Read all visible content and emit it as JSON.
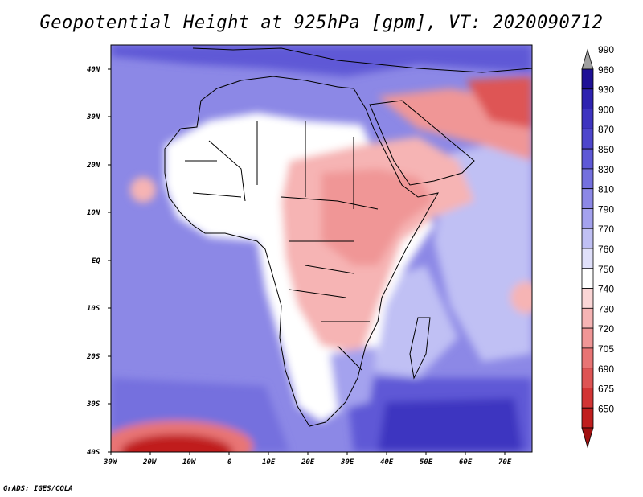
{
  "title": "Geopotential Height at 925hPa [gpm], VT: 2020090712",
  "credit": "GrADS: IGES/COLA",
  "map": {
    "lon_range": [
      -30,
      77
    ],
    "lat_range": [
      -40,
      45
    ],
    "lon_ticks": [
      "30W",
      "20W",
      "10W",
      "0",
      "10E",
      "20E",
      "30E",
      "40E",
      "50E",
      "60E",
      "70E"
    ],
    "lat_ticks": [
      "40N",
      "30N",
      "20N",
      "10N",
      "EQ",
      "10S",
      "20S",
      "30S",
      "40S"
    ]
  },
  "colorbar": {
    "labels": [
      "990",
      "960",
      "930",
      "900",
      "870",
      "850",
      "830",
      "810",
      "790",
      "770",
      "760",
      "750",
      "740",
      "730",
      "720",
      "705",
      "690",
      "675",
      "650"
    ],
    "colors": [
      "#a0a0a0",
      "#1e1096",
      "#2e22b0",
      "#3e34c0",
      "#4e46cc",
      "#5e58d6",
      "#7470de",
      "#8c88e6",
      "#a4a2ee",
      "#c0c0f4",
      "#e0e0fa",
      "#ffffff",
      "#fbd6d6",
      "#f6b4b4",
      "#f09696",
      "#e87474",
      "#de5454",
      "#d23434",
      "#c01e1e",
      "#a01010"
    ]
  },
  "chart_data": {
    "type": "heatmap",
    "title": "Geopotential Height at 925hPa [gpm], VT: 2020090712",
    "variable": "Geopotential Height at 925hPa",
    "units": "gpm",
    "valid_time": "2020090712",
    "x_range": [
      -30,
      77
    ],
    "y_range": [
      -40,
      45
    ],
    "contour_levels": [
      650,
      675,
      690,
      705,
      720,
      730,
      740,
      750,
      760,
      770,
      790,
      810,
      830,
      850,
      870,
      900,
      930,
      960,
      990
    ]
  }
}
